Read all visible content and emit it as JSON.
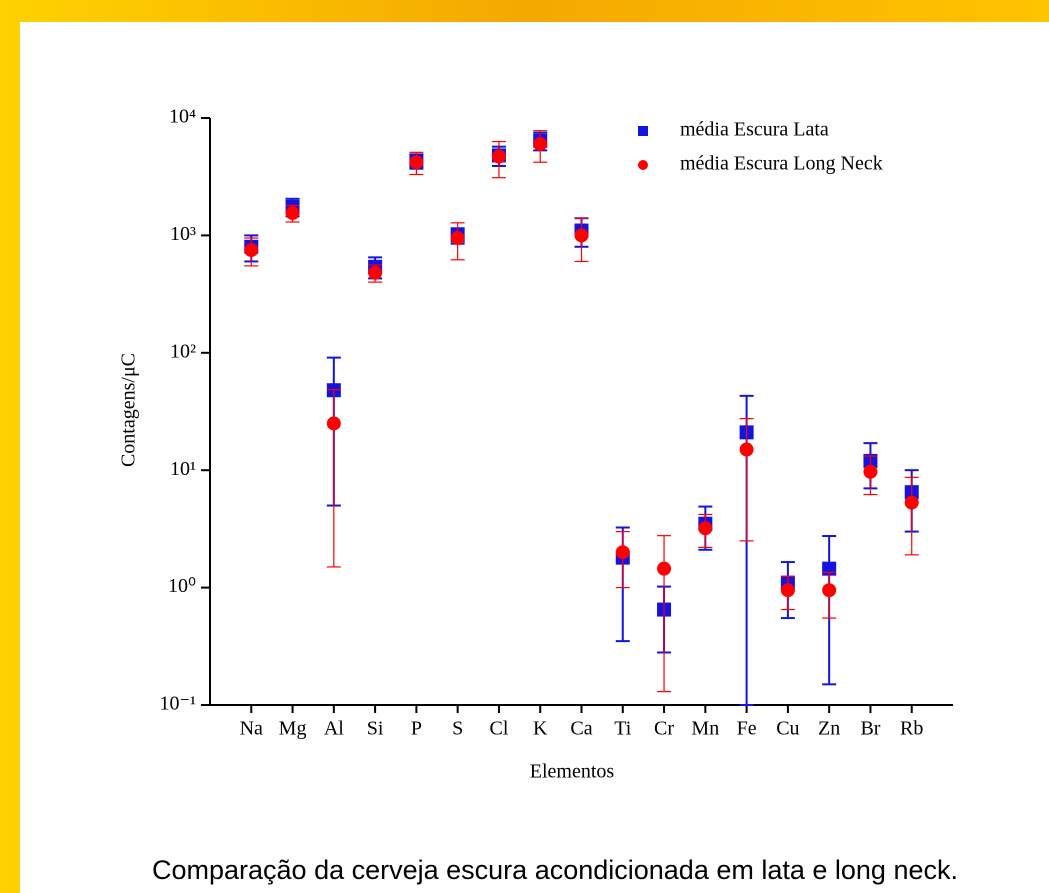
{
  "chart_data": {
    "type": "scatter",
    "x_label": "Elementos",
    "y_label": "Contagens/μC",
    "categories": [
      "Na",
      "Mg",
      "Al",
      "Si",
      "P",
      "S",
      "Cl",
      "K",
      "Ca",
      "Ti",
      "Cr",
      "Mn",
      "Fe",
      "Cu",
      "Zn",
      "Br",
      "Rb"
    ],
    "log_y": true,
    "ylim": [
      0.1,
      10000
    ],
    "yticks": [
      {
        "value": 0.1,
        "label": "10⁻¹"
      },
      {
        "value": 1,
        "label": "10⁰"
      },
      {
        "value": 10,
        "label": "10¹"
      },
      {
        "value": 100,
        "label": "10²"
      },
      {
        "value": 1000,
        "label": "10³"
      },
      {
        "value": 10000,
        "label": "10⁴"
      }
    ],
    "legend": "top-right",
    "series": [
      {
        "name": "média Escura Lata",
        "color": "#1414e0",
        "marker": "square",
        "values": [
          800,
          1750,
          48,
          540,
          4300,
          1000,
          4800,
          6400,
          1100,
          1.8,
          0.65,
          3.5,
          21,
          1.1,
          1.45,
          12,
          6.5
        ],
        "errors": [
          200,
          300,
          43,
          110,
          600,
          150,
          900,
          1100,
          300,
          1.45,
          0.37,
          1.4,
          22,
          0.55,
          1.3,
          5,
          3.5
        ]
      },
      {
        "name": "média Escura Long Neck",
        "color": "#ff0000",
        "marker": "circle",
        "values": [
          750,
          1550,
          25,
          480,
          4200,
          950,
          4700,
          6000,
          1000,
          2.0,
          1.45,
          3.2,
          15,
          0.95,
          0.95,
          9.7,
          5.3
        ],
        "errors": [
          200,
          250,
          23.5,
          80,
          900,
          330,
          1600,
          1800,
          400,
          1.0,
          1.32,
          1.0,
          12.5,
          0.3,
          0.4,
          3.5,
          3.4
        ]
      }
    ]
  },
  "caption": "Comparação da cerveja escura acondicionada em lata e long neck."
}
